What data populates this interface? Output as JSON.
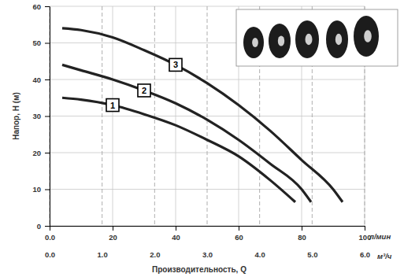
{
  "chart_data": {
    "type": "line",
    "xlabel": "Производительность, Q",
    "ylabel": "Напор, H (м)",
    "x_unit": "л/мин",
    "x2_unit": "м³/ч",
    "xlim": [
      0,
      100
    ],
    "xticks": [
      {
        "value": 0,
        "label": "0.0"
      },
      20,
      40,
      60,
      80,
      100
    ],
    "x2lim": [
      0,
      6
    ],
    "x2ticks": [
      {
        "value": 0,
        "label": "0.0"
      },
      {
        "value": 1,
        "label": "1.0"
      },
      {
        "value": 2,
        "label": "2.0"
      },
      {
        "value": 3,
        "label": "3.0"
      },
      {
        "value": 4,
        "label": "4.0"
      },
      {
        "value": 5,
        "label": "5.0"
      },
      {
        "value": 6,
        "label": "6.0"
      }
    ],
    "ylim": [
      0,
      60
    ],
    "yticks": [
      0,
      10,
      20,
      30,
      40,
      50,
      60
    ],
    "grid": true,
    "series": [
      {
        "name": "1",
        "color": "#222222",
        "line_style": "solid",
        "x": [
          4,
          10,
          20,
          30,
          40,
          50,
          60,
          70,
          78
        ],
        "values": [
          35,
          34.5,
          33,
          30.5,
          27.5,
          23.5,
          19,
          12.5,
          6.5
        ]
      },
      {
        "name": "2",
        "color": "#222222",
        "line_style": "solid",
        "x": [
          4,
          10,
          20,
          30,
          40,
          50,
          60,
          70,
          80,
          83
        ],
        "values": [
          44,
          42.5,
          40,
          37,
          33.5,
          29,
          23.5,
          17,
          10,
          6.5
        ]
      },
      {
        "name": "3",
        "color": "#222222",
        "line_style": "solid",
        "x": [
          4,
          10,
          20,
          30,
          40,
          50,
          60,
          70,
          80,
          90,
          93
        ],
        "values": [
          54,
          53.5,
          51.5,
          48,
          44,
          39,
          33,
          26,
          18,
          10,
          6.5
        ]
      }
    ]
  }
}
